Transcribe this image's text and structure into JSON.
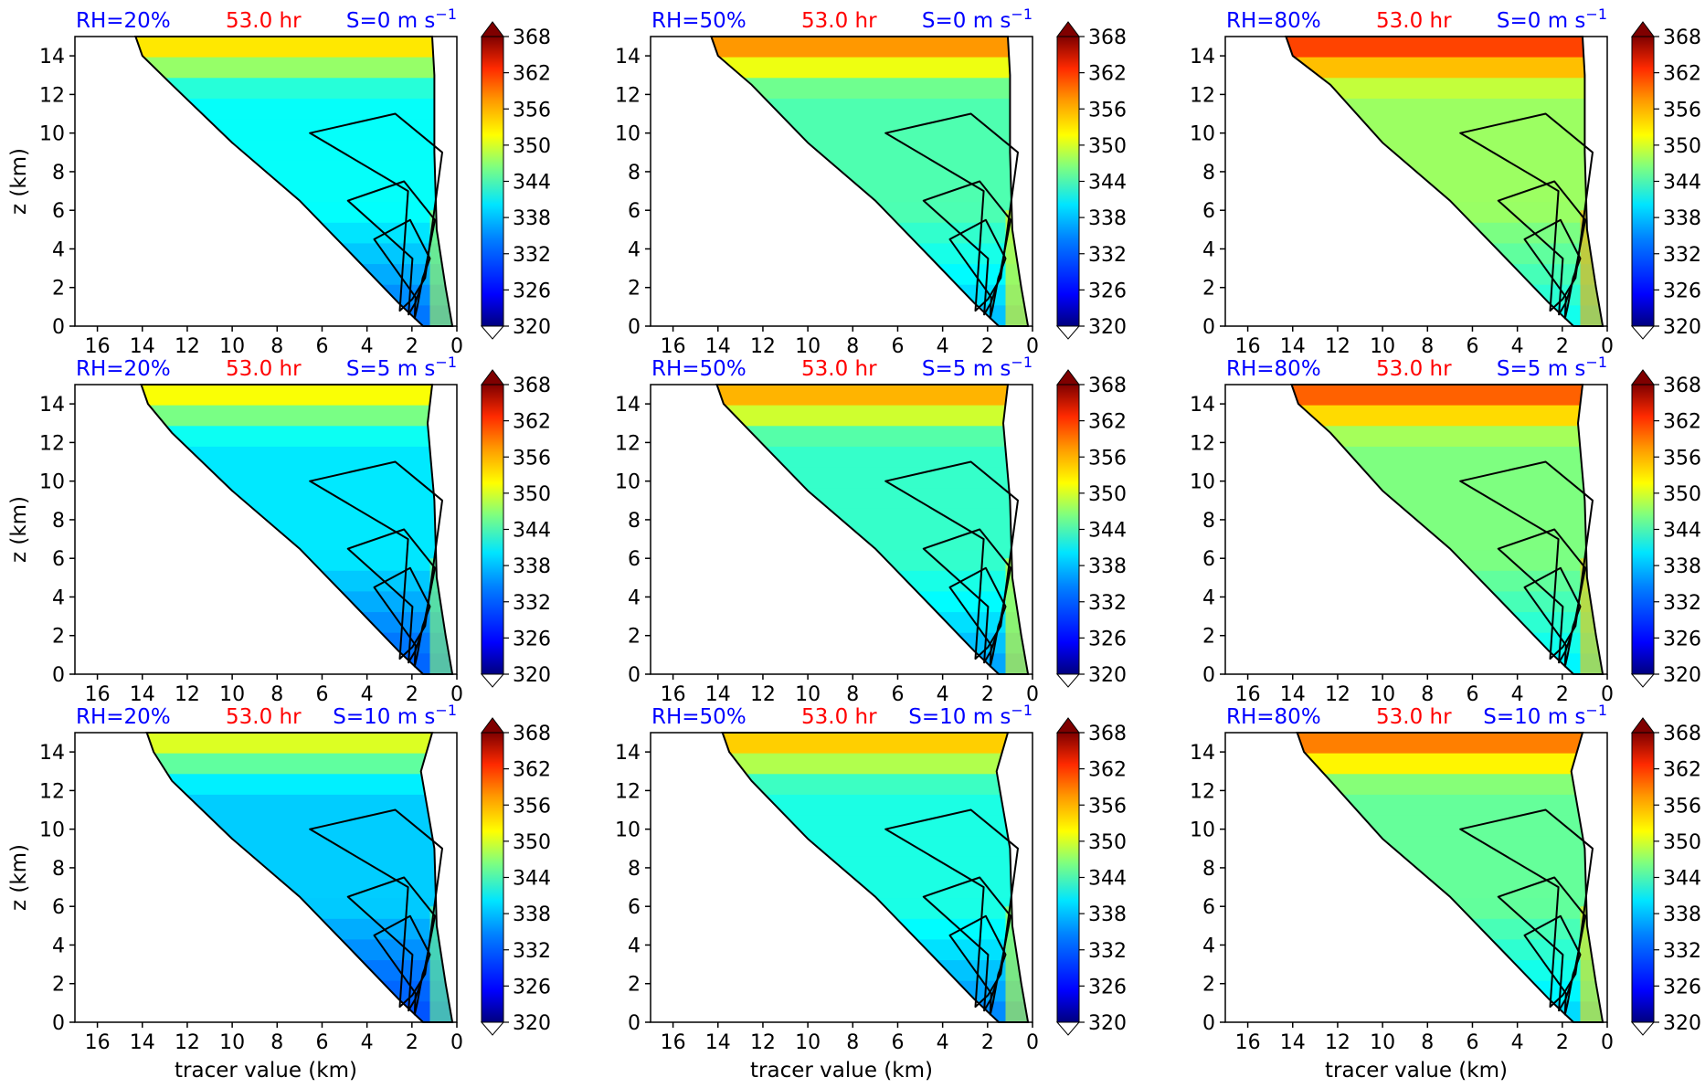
{
  "chart_data": {
    "type": "contour-panel-grid",
    "rows": 3,
    "cols": 3,
    "xlabel": "tracer value (km)",
    "ylabel": "z (km)",
    "xlim": [
      17,
      0
    ],
    "ylim": [
      0,
      15
    ],
    "x_ticks": [
      16,
      14,
      12,
      10,
      8,
      6,
      4,
      2,
      0
    ],
    "y_ticks": [
      0,
      2,
      4,
      6,
      8,
      10,
      12,
      14
    ],
    "colorbar": {
      "ticks": [
        320,
        326,
        332,
        338,
        344,
        350,
        356,
        362,
        368
      ],
      "range": [
        320,
        368
      ],
      "extend": "both",
      "colormap": [
        "#00007f",
        "#0000ff",
        "#007fff",
        "#00ffff",
        "#7fff7f",
        "#ffff00",
        "#ff7f00",
        "#ff0000",
        "#7f0000"
      ]
    },
    "title_colors": {
      "rh": "#0000ff",
      "time": "#ff0000",
      "shear": "#0000ff"
    },
    "panels": [
      {
        "rh": "RH=20%",
        "time": "53.0 hr",
        "shear": "S=0 m s",
        "shear_exp": "−1",
        "humidity": 20,
        "shear_val": 0
      },
      {
        "rh": "RH=50%",
        "time": "53.0 hr",
        "shear": "S=0 m s",
        "shear_exp": "−1",
        "humidity": 50,
        "shear_val": 0
      },
      {
        "rh": "RH=80%",
        "time": "53.0 hr",
        "shear": "S=0 m s",
        "shear_exp": "−1",
        "humidity": 80,
        "shear_val": 0
      },
      {
        "rh": "RH=20%",
        "time": "53.0 hr",
        "shear": "S=5 m s",
        "shear_exp": "−1",
        "humidity": 20,
        "shear_val": 5
      },
      {
        "rh": "RH=50%",
        "time": "53.0 hr",
        "shear": "S=5 m s",
        "shear_exp": "−1",
        "humidity": 50,
        "shear_val": 5
      },
      {
        "rh": "RH=80%",
        "time": "53.0 hr",
        "shear": "S=5 m s",
        "shear_exp": "−1",
        "humidity": 80,
        "shear_val": 5
      },
      {
        "rh": "RH=20%",
        "time": "53.0 hr",
        "shear": "S=10 m s",
        "shear_exp": "−1",
        "humidity": 20,
        "shear_val": 10
      },
      {
        "rh": "RH=50%",
        "time": "53.0 hr",
        "shear": "S=10 m s",
        "shear_exp": "−1",
        "humidity": 50,
        "shear_val": 10
      },
      {
        "rh": "RH=80%",
        "time": "53.0 hr",
        "shear": "S=10 m s",
        "shear_exp": "−1",
        "humidity": 80,
        "shear_val": 10
      }
    ]
  }
}
